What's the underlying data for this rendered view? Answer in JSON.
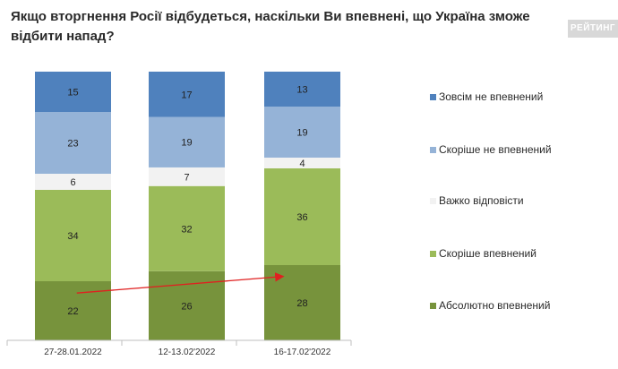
{
  "title": "Якщо вторгнення Росії відбудеться, наскільки Ви впевнені, що Україна зможе відбити напад?",
  "brand": "РЕЙТИНГ",
  "chart_data": {
    "type": "bar",
    "stacked": true,
    "percent_stacked": true,
    "categories": [
      "27-28.01.2022",
      "12-13.02'2022",
      "16-17.02'2022"
    ],
    "series": [
      {
        "name": "Абсолютно впевнений",
        "values": [
          22,
          26,
          28
        ],
        "color": "#77933c"
      },
      {
        "name": "Скоріше впевнений",
        "values": [
          34,
          32,
          36
        ],
        "color": "#9bbb59"
      },
      {
        "name": "Важко відповісти",
        "values": [
          6,
          7,
          4
        ],
        "color": "#f2f2f2"
      },
      {
        "name": "Скоріше не впевнений",
        "values": [
          23,
          19,
          19
        ],
        "color": "#95b3d7"
      },
      {
        "name": "Зовсім не впевнений",
        "values": [
          15,
          17,
          13
        ],
        "color": "#4f81bd"
      }
    ],
    "legend_position": "right",
    "legend_order": [
      "Зовсім не впевнений",
      "Скоріше не впевнений",
      "Важко відповісти",
      "Скоріше впевнений",
      "Абсолютно впевнений"
    ],
    "grid": false,
    "annotations": [
      {
        "type": "arrow",
        "from": "27-28.01.2022",
        "to": "16-17.02'2022",
        "series": "Абсолютно впевнений",
        "color": "#e02020"
      }
    ]
  }
}
